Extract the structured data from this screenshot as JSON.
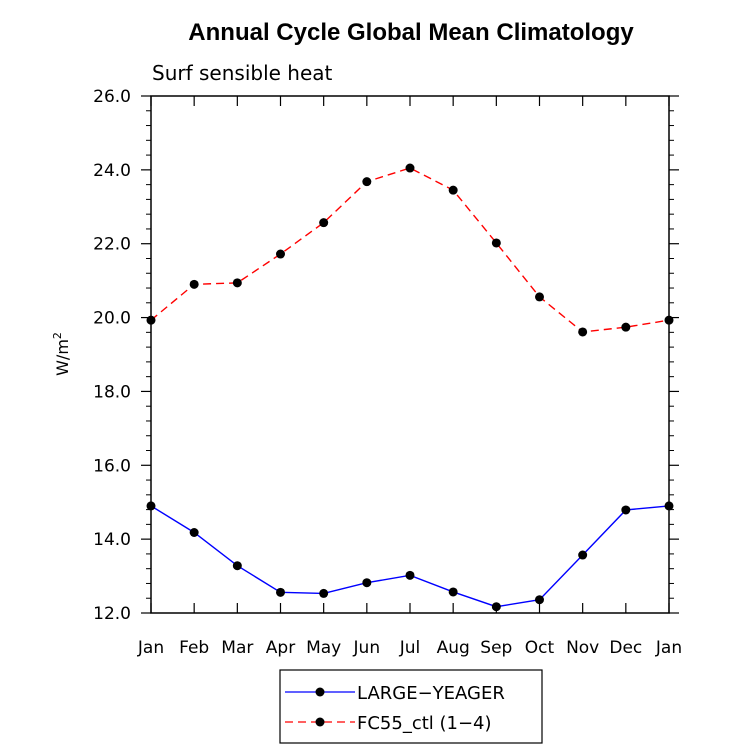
{
  "chart_data": {
    "type": "line",
    "title": "Annual Cycle Global Mean Climatology",
    "subtitle": "Surf sensible heat",
    "ylabel": "W/m",
    "ylabel_superscript": "2",
    "xlabel": "",
    "categories": [
      "Jan",
      "Feb",
      "Mar",
      "Apr",
      "May",
      "Jun",
      "Jul",
      "Aug",
      "Sep",
      "Oct",
      "Nov",
      "Dec",
      "Jan"
    ],
    "ylim": [
      12.0,
      26.0
    ],
    "yticks": [
      12.0,
      14.0,
      16.0,
      18.0,
      20.0,
      22.0,
      24.0,
      26.0
    ],
    "ytick_labels": [
      "12.0",
      "14.0",
      "16.0",
      "18.0",
      "20.0",
      "22.0",
      "24.0",
      "26.0"
    ],
    "grid": false,
    "legend_position": "bottom-center",
    "series": [
      {
        "name": "LARGE−YEAGER",
        "color": "#0000ff",
        "dash": "solid",
        "values": [
          14.9,
          14.18,
          13.28,
          12.56,
          12.53,
          12.82,
          13.02,
          12.57,
          12.17,
          12.36,
          13.57,
          14.79,
          14.9
        ]
      },
      {
        "name": "FC55_ctl (1−4)",
        "color": "#ff0000",
        "dash": "dashed",
        "values": [
          19.93,
          20.9,
          20.94,
          21.72,
          22.57,
          23.68,
          24.05,
          23.45,
          22.02,
          20.56,
          19.61,
          19.74,
          19.93
        ]
      }
    ]
  }
}
